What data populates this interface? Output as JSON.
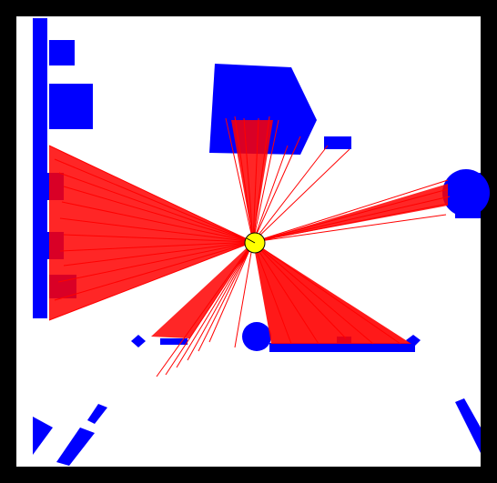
{
  "scene": {
    "kind": "2d-robot-laser-scan-simulation",
    "background_color": "#ffffff",
    "border_color": "#000000",
    "obstacle_color": "#0000ff",
    "laser_color": "#ff0000",
    "robot_color": "#ffff00",
    "robot_outline_color": "#000000",
    "obstacle_icon": "blue-obstacle-block",
    "robot_icon": "yellow-circle-robot",
    "laser_icon": "red-laser-beam"
  }
}
